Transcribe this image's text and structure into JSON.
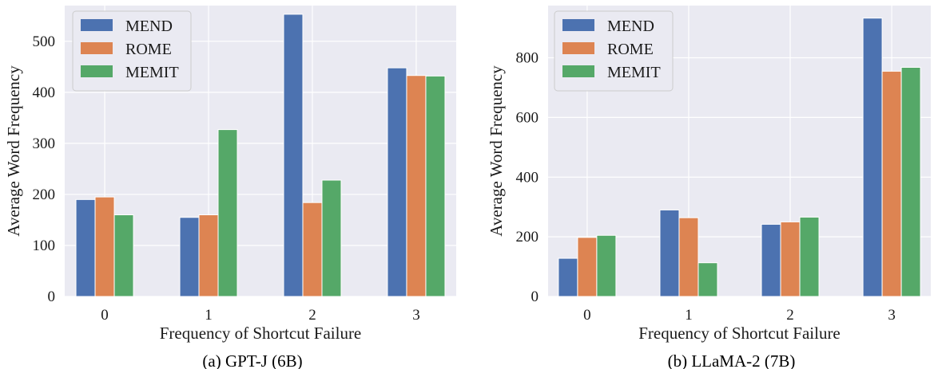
{
  "chart_data": [
    {
      "type": "bar",
      "caption": "(a)  GPT-J (6B)",
      "xlabel": "Frequency of Shortcut Failure",
      "ylabel": "Average Word Frequency",
      "categories": [
        "0",
        "1",
        "2",
        "3"
      ],
      "ylim": [
        0,
        570
      ],
      "yticks": [
        0,
        100,
        200,
        300,
        400,
        500
      ],
      "grid": true,
      "legend_position": "top-left",
      "series": [
        {
          "name": "MEND",
          "color": "#4c72b0",
          "values": [
            190,
            155,
            553,
            448
          ]
        },
        {
          "name": "ROME",
          "color": "#dd8452",
          "values": [
            195,
            160,
            184,
            433
          ]
        },
        {
          "name": "MEMIT",
          "color": "#55a868",
          "values": [
            160,
            327,
            228,
            432
          ]
        }
      ]
    },
    {
      "type": "bar",
      "caption": "(b)  LLaMA-2 (7B)",
      "xlabel": "Frequency of Shortcut Failure",
      "ylabel": "Average Word Frequency",
      "categories": [
        "0",
        "1",
        "2",
        "3"
      ],
      "ylim": [
        0,
        975
      ],
      "yticks": [
        0,
        200,
        400,
        600,
        800
      ],
      "grid": true,
      "legend_position": "top-left",
      "series": [
        {
          "name": "MEND",
          "color": "#4c72b0",
          "values": [
            128,
            290,
            242,
            933
          ]
        },
        {
          "name": "ROME",
          "color": "#dd8452",
          "values": [
            198,
            264,
            250,
            755
          ]
        },
        {
          "name": "MEMIT",
          "color": "#55a868",
          "values": [
            205,
            113,
            266,
            768
          ]
        }
      ]
    }
  ]
}
